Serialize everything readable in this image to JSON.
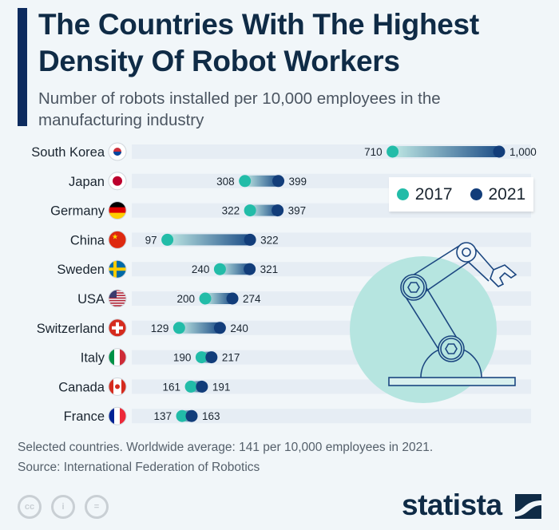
{
  "header": {
    "title": "The Countries With The Highest Density Of Robot Workers",
    "subtitle": "Number of robots installed per 10,000 employees in the manufacturing industry"
  },
  "chart_data": {
    "type": "dumbbell",
    "categories": [
      "South Korea",
      "Japan",
      "Germany",
      "China",
      "Sweden",
      "USA",
      "Switzerland",
      "Italy",
      "Canada",
      "France"
    ],
    "series": [
      {
        "name": "2017",
        "color": "#22bca8",
        "values": [
          710,
          308,
          322,
          97,
          240,
          200,
          129,
          190,
          161,
          137
        ]
      },
      {
        "name": "2021",
        "color": "#123d7a",
        "values": [
          1000,
          399,
          397,
          322,
          321,
          274,
          240,
          217,
          191,
          163
        ]
      }
    ],
    "value_labels_2021": [
      "1,000",
      "399",
      "397",
      "322",
      "321",
      "274",
      "240",
      "217",
      "191",
      "163"
    ],
    "xlim": [
      0,
      1000
    ],
    "legend_placement": "top-right",
    "grid": false
  },
  "legend": {
    "items": [
      "2017",
      "2021"
    ]
  },
  "footer": {
    "note": "Selected countries. Worldwide average: 141 per 10,000 employees in 2021.",
    "source": "Source: International Federation of Robotics",
    "license_icons": [
      "cc",
      "by",
      "nd"
    ],
    "brand": "statista"
  }
}
